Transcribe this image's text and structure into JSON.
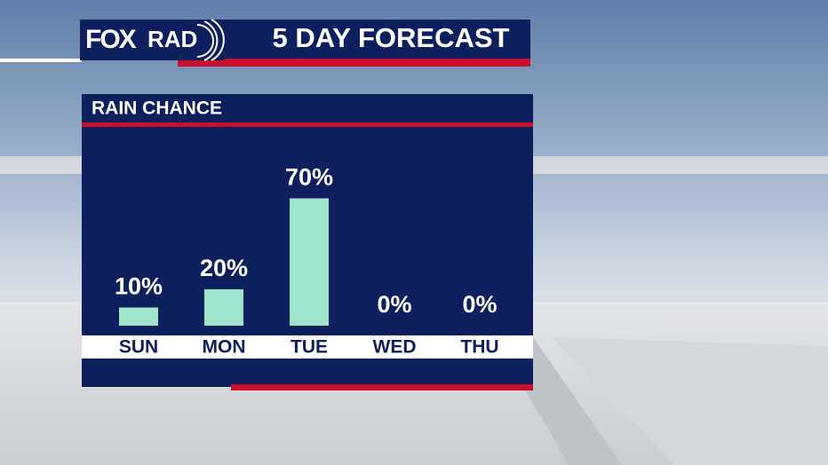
{
  "header": {
    "logo": [
      "FOX",
      "RAD"
    ],
    "title": "5 DAY FORECAST"
  },
  "chart_data": {
    "type": "bar",
    "title": "RAIN CHANCE",
    "categories": [
      "SUN",
      "MON",
      "TUE",
      "WED",
      "THU"
    ],
    "values": [
      10,
      20,
      70,
      0,
      0
    ],
    "value_labels": [
      "10%",
      "20%",
      "70%",
      "0%",
      "0%"
    ],
    "color": "#9ee3cc"
  }
}
